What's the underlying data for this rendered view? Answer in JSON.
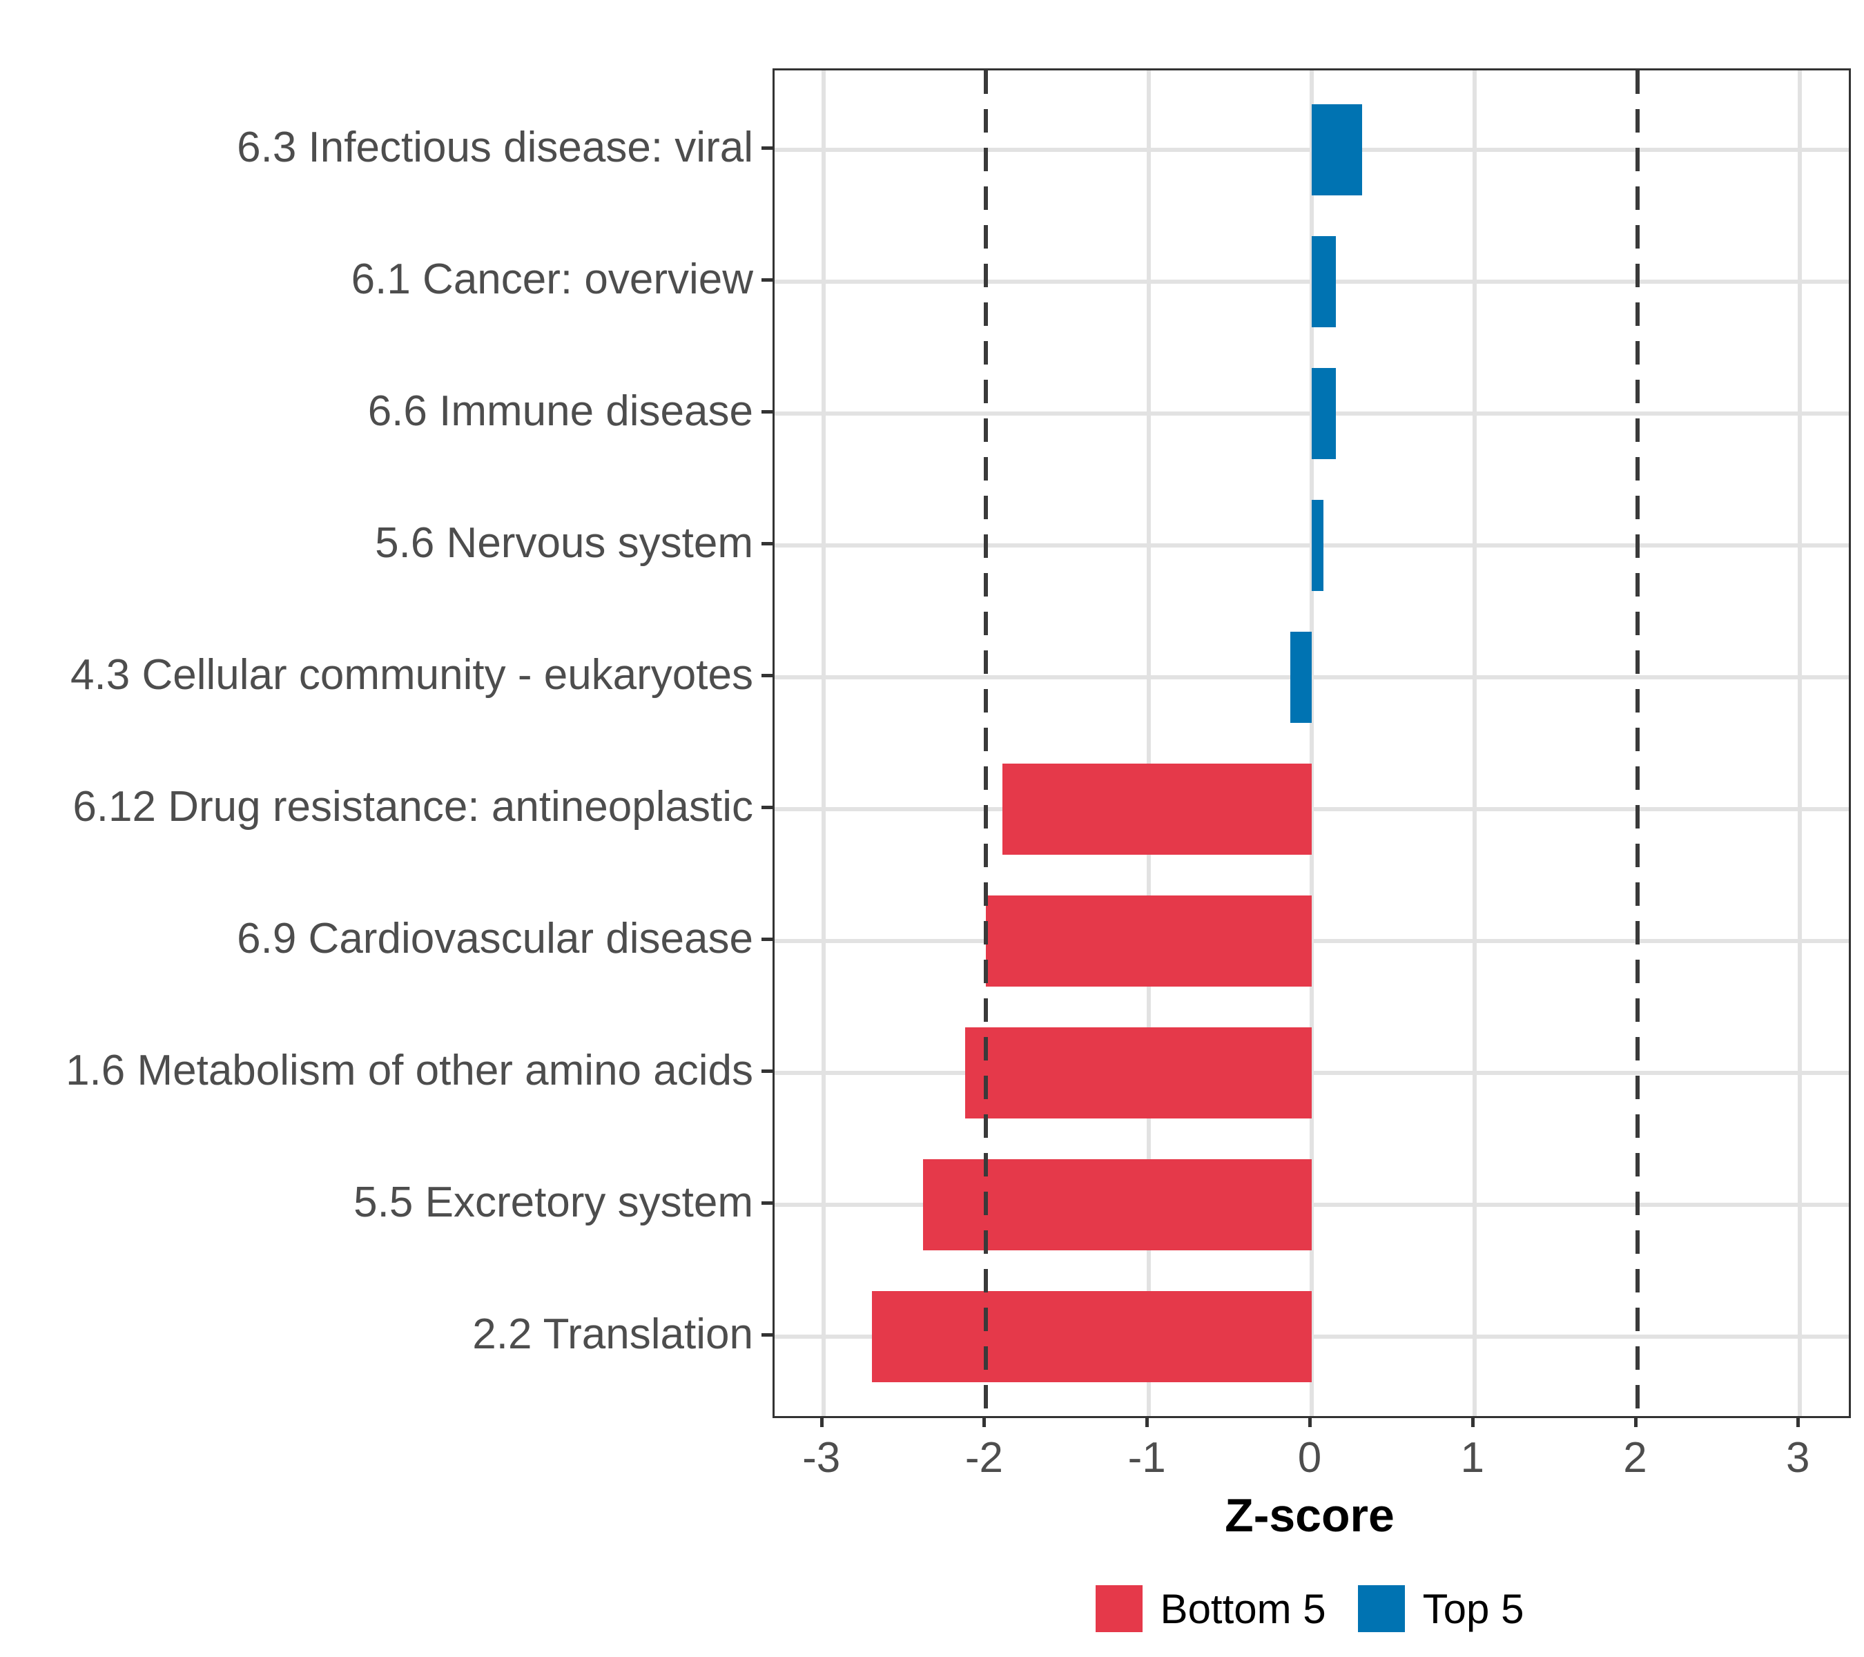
{
  "chart_data": {
    "type": "bar",
    "orientation": "horizontal",
    "title": "",
    "xlabel": "Z-score",
    "ylabel": "",
    "x_ticks": [
      -3,
      -2,
      -1,
      0,
      1,
      2,
      3
    ],
    "xlim": [
      -3.3,
      3.3
    ],
    "reference_lines": [
      -2,
      2
    ],
    "grid": true,
    "legend_position": "bottom",
    "items": [
      {
        "label": "6.3 Infectious disease: viral",
        "value": 0.31,
        "group": "Top 5"
      },
      {
        "label": "6.1 Cancer: overview",
        "value": 0.15,
        "group": "Top 5"
      },
      {
        "label": "6.6 Immune disease",
        "value": 0.15,
        "group": "Top 5"
      },
      {
        "label": "5.6 Nervous system",
        "value": 0.07,
        "group": "Top 5"
      },
      {
        "label": "4.3 Cellular community - eukaryotes",
        "value": -0.13,
        "group": "Top 5"
      },
      {
        "label": "6.12 Drug resistance: antineoplastic",
        "value": -1.9,
        "group": "Bottom 5"
      },
      {
        "label": "6.9 Cardiovascular disease",
        "value": -2.0,
        "group": "Bottom 5"
      },
      {
        "label": "1.6 Metabolism of other amino acids",
        "value": -2.13,
        "group": "Bottom 5"
      },
      {
        "label": "5.5 Excretory system",
        "value": -2.39,
        "group": "Bottom 5"
      },
      {
        "label": "2.2 Translation",
        "value": -2.7,
        "group": "Bottom 5"
      }
    ],
    "legend": [
      {
        "label": "Bottom 5",
        "color": "#E5394A"
      },
      {
        "label": "Top 5",
        "color": "#0073B2"
      }
    ]
  },
  "colors": {
    "bottom5": "#E5394A",
    "top5": "#0073B2",
    "grid": "#E2E2E2",
    "axis_text": "#4D4D4D",
    "title_text": "#000000",
    "panel_border": "#333333",
    "reference_line": "#3A3A3A",
    "background": "#FFFFFF"
  }
}
